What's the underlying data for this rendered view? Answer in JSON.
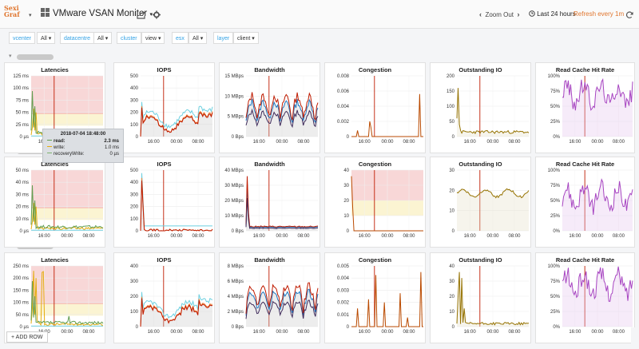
{
  "app": {
    "logo_line1": "Sexi",
    "logo_line2": "Graf",
    "dashboard_title": "VMware VSAN Monitor",
    "zoom_out_label": "Zoom Out",
    "time_range": "Last 24 hours",
    "refresh_label": "Refresh every 1m",
    "add_row_label": "ADD ROW"
  },
  "variables": [
    {
      "label": "vcenter",
      "value": "All"
    },
    {
      "label": "datacentre",
      "value": "All"
    },
    {
      "label": "cluster",
      "value": "view"
    },
    {
      "label": "esx",
      "value": "All"
    },
    {
      "label": "layer",
      "value": "client"
    }
  ],
  "tooltip": {
    "time": "2018-07-04 18:48:00",
    "lines": [
      {
        "name": "read:",
        "value": "2.3 ms",
        "color": "#629e51",
        "bold": true
      },
      {
        "name": "write:",
        "value": "1.0 ms",
        "color": "#e5ac0e",
        "bold": false
      },
      {
        "name": "recoveryWrite:",
        "value": "0 µs",
        "color": "#7eb26d",
        "bold": false
      }
    ]
  },
  "x_ticks": [
    "16:00",
    "00:00",
    "08:00"
  ],
  "rows": [
    {
      "panels": [
        {
          "title": "Latencies",
          "yticks": [
            "125 ms",
            "100 ms",
            "75 ms",
            "50 ms",
            "25 ms",
            "0 µs"
          ],
          "type": "latency",
          "variant": 1
        },
        {
          "title": "IOPS",
          "yticks": [
            "500",
            "400",
            "300",
            "200",
            "100",
            "0"
          ],
          "type": "iops",
          "variant": 1
        },
        {
          "title": "Bandwidth",
          "yticks": [
            "15 MBps",
            "10 MBps",
            "5 MBps",
            "0 Bps"
          ],
          "type": "bw",
          "variant": 1
        },
        {
          "title": "Congestion",
          "yticks": [
            "0.008",
            "0.006",
            "0.004",
            "0.002",
            "0"
          ],
          "type": "cong",
          "variant": 1
        },
        {
          "title": "Outstanding IO",
          "yticks": [
            "200",
            "150",
            "100",
            "50",
            "0"
          ],
          "type": "oio",
          "variant": 1
        },
        {
          "title": "Read Cache Hit Rate",
          "yticks": [
            "100%",
            "75%",
            "50%",
            "25%",
            "0%"
          ],
          "type": "cache",
          "variant": 1
        }
      ]
    },
    {
      "panels": [
        {
          "title": "Latencies",
          "yticks": [
            "50 ms",
            "40 ms",
            "30 ms",
            "20 ms",
            "10 ms",
            "0 µs"
          ],
          "type": "latency",
          "variant": 2
        },
        {
          "title": "IOPS",
          "yticks": [
            "500",
            "400",
            "300",
            "200",
            "100",
            "0"
          ],
          "type": "iops",
          "variant": 2
        },
        {
          "title": "Bandwidth",
          "yticks": [
            "40 MBps",
            "30 MBps",
            "20 MBps",
            "10 MBps",
            "0 Bps"
          ],
          "type": "bw",
          "variant": 2
        },
        {
          "title": "Congestion",
          "yticks": [
            "40",
            "30",
            "20",
            "10",
            "0"
          ],
          "type": "cong",
          "variant": 2
        },
        {
          "title": "Outstanding IO",
          "yticks": [
            "30",
            "20",
            "10",
            "0"
          ],
          "type": "oio",
          "variant": 2
        },
        {
          "title": "Read Cache Hit Rate",
          "yticks": [
            "100%",
            "75%",
            "50%",
            "25%",
            "0%"
          ],
          "type": "cache",
          "variant": 2
        }
      ]
    },
    {
      "panels": [
        {
          "title": "Latencies",
          "yticks": [
            "250 ms",
            "200 ms",
            "150 ms",
            "100 ms",
            "50 ms",
            "0 µs"
          ],
          "type": "latency",
          "variant": 3
        },
        {
          "title": "IOPS",
          "yticks": [
            "400",
            "300",
            "200",
            "100",
            "0"
          ],
          "type": "iops",
          "variant": 3
        },
        {
          "title": "Bandwidth",
          "yticks": [
            "8 MBps",
            "6 MBps",
            "4 MBps",
            "2 MBps",
            "0 Bps"
          ],
          "type": "bw",
          "variant": 3
        },
        {
          "title": "Congestion",
          "yticks": [
            "0.005",
            "0.004",
            "0.003",
            "0.002",
            "0.001",
            "0"
          ],
          "type": "cong",
          "variant": 3
        },
        {
          "title": "Outstanding IO",
          "yticks": [
            "40",
            "30",
            "20",
            "10",
            "0"
          ],
          "type": "oio",
          "variant": 3
        },
        {
          "title": "Read Cache Hit Rate",
          "yticks": [
            "100%",
            "75%",
            "50%",
            "25%",
            "0%"
          ],
          "type": "cache",
          "variant": 3
        }
      ]
    }
  ],
  "colors": {
    "accent": "#e0752d",
    "link": "#33a2e5",
    "red_line": "#bf1b00",
    "threshold_red": "#f8d7d7",
    "threshold_yellow": "#fbf4d2"
  }
}
